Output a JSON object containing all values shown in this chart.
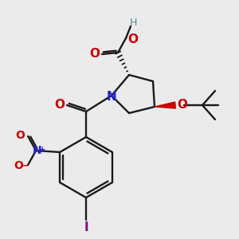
{
  "bg_color": "#ebebeb",
  "atom_colors": {
    "O": "#cc0000",
    "N": "#2222cc",
    "I": "#8b008b",
    "C": "#1a1a1a",
    "H": "#4a8888"
  },
  "bond_color": "#1a1a1a",
  "bond_width": 1.7,
  "figsize": [
    3.0,
    3.0
  ],
  "dpi": 100
}
